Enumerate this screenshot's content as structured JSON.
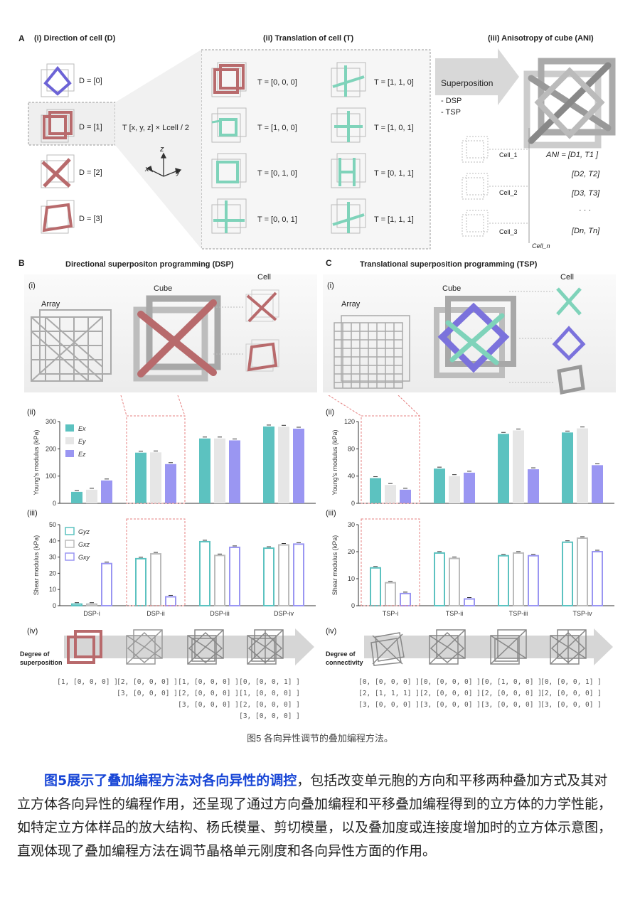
{
  "panelA": {
    "letter": "A",
    "i_title": "(i) Direction of cell (D)",
    "ii_title": "(ii) Translation of cell (T)",
    "iii_title": "(iii) Anisotropy of cube (ANI)",
    "directions": [
      "D = [0]",
      "D = [1]",
      "D = [2]",
      "D = [3]"
    ],
    "formula": "T [x, y, z] × Lcell / 2",
    "axes": {
      "z": "z",
      "x": "x",
      "y": "y"
    },
    "translations_left": [
      "T = [0, 0, 0]",
      "T = [1, 0, 0]",
      "T = [0, 1, 0]",
      "T = [0, 0, 1]"
    ],
    "translations_right": [
      "T = [1, 1, 0]",
      "T = [1, 0, 1]",
      "T = [0, 1, 1]",
      "T = [1, 1, 1]"
    ],
    "superposition": "Superposition",
    "methods": [
      "- DSP",
      "- TSP"
    ],
    "cells": [
      "Cell_1",
      "Cell_2",
      "Cell_3",
      "Cell_n"
    ],
    "ani": [
      "ANI = [D1, T1 ]",
      "[D2, T2]",
      "[D3, T3]",
      "· · ·",
      "[Dn, Tn]"
    ]
  },
  "panelB": {
    "letter": "B",
    "title": "Directional superpositon programming (DSP)",
    "i": "(i)",
    "ii": "(ii)",
    "iii": "(iii)",
    "iv": "(iv)",
    "array": "Array",
    "cube": "Cube",
    "cell": "Cell",
    "degree": "Degree of superposition",
    "codes": [
      [
        "[1, [0, 0, 0] ]"
      ],
      [
        "[2, [0, 0, 0] ]",
        "[3, [0, 0, 0] ]"
      ],
      [
        "[1, [0, 0, 0] ]",
        "[2, [0, 0, 0] ]",
        "[3, [0, 0, 0] ]"
      ],
      [
        "[0, [0, 0, 1] ]",
        "[1, [0, 0, 0] ]",
        "[2, [0, 0, 0] ]",
        "[3, [0, 0, 0] ]"
      ]
    ]
  },
  "panelC": {
    "letter": "C",
    "title": "Translational superposition programming (TSP)",
    "i": "(i)",
    "ii": "(ii)",
    "iii": "(iii)",
    "iv": "(iv)",
    "array": "Array",
    "cube": "Cube",
    "cell": "Cell",
    "degree": "Degree of connectivity",
    "codes": [
      [
        "[0, [0, 0, 0] ]",
        "[2, [1, 1, 1] ]",
        "[3, [0, 0, 0] ]"
      ],
      [
        "[0, [0, 0, 0] ]",
        "[2, [0, 0, 0] ]",
        "[3, [0, 0, 0] ]"
      ],
      [
        "[0, [1, 0, 0] ]",
        "[2, [0, 0, 0] ]",
        "[3, [0, 0, 0] ]"
      ],
      [
        "[0, [0, 0, 1] ]",
        "[2, [0, 0, 0] ]",
        "[3, [0, 0, 0] ]"
      ]
    ]
  },
  "colors": {
    "teal": "#5cc2c0",
    "grey": "#e6e6e6",
    "purple": "#9a96f2",
    "red": "#b86a6c",
    "green": "#7fd3ba"
  },
  "chart_data": [
    {
      "type": "bar",
      "id": "dsp-young",
      "categories": [
        "DSP-i",
        "DSP-ii",
        "DSP-iii",
        "DSP-iv"
      ],
      "series": [
        {
          "name": "Ex",
          "values": [
            42,
            186,
            238,
            282
          ]
        },
        {
          "name": "Ey",
          "values": [
            50,
            187,
            238,
            281
          ]
        },
        {
          "name": "Ez",
          "values": [
            84,
            144,
            231,
            274
          ]
        }
      ],
      "ylabel": "Young's modulus (kPa)",
      "ylim": [
        0,
        300
      ],
      "yticks": [
        0,
        100,
        200,
        300
      ],
      "style": "filled",
      "legend": [
        "Ex",
        "Ey",
        "Ez"
      ]
    },
    {
      "type": "bar",
      "id": "tsp-young",
      "categories": [
        "TSP-i",
        "TSP-ii",
        "TSP-iii",
        "TSP-iv"
      ],
      "series": [
        {
          "name": "Ex",
          "values": [
            37,
            51,
            102,
            104
          ]
        },
        {
          "name": "Ey",
          "values": [
            27,
            40,
            107,
            110
          ]
        },
        {
          "name": "Ez",
          "values": [
            20,
            45,
            50,
            56
          ]
        }
      ],
      "ylabel": "Young's modulus (kPa)",
      "ylim": [
        0,
        120
      ],
      "yticks": [
        0,
        40,
        80,
        120
      ],
      "style": "filled"
    },
    {
      "type": "bar",
      "id": "dsp-shear",
      "categories": [
        "DSP-i",
        "DSP-ii",
        "DSP-iii",
        "DSP-iv"
      ],
      "series": [
        {
          "name": "Gyz",
          "values": [
            1,
            29,
            39.5,
            35.5
          ]
        },
        {
          "name": "Gxz",
          "values": [
            1,
            32,
            31,
            37.5
          ]
        },
        {
          "name": "Gxy",
          "values": [
            26,
            5.5,
            36,
            38
          ]
        }
      ],
      "ylabel": "Shear modulus (kPa)",
      "ylim": [
        0,
        50
      ],
      "yticks": [
        0,
        10,
        20,
        30,
        40,
        50
      ],
      "style": "outline",
      "legend": [
        "Gyz",
        "Gxz",
        "Gxy"
      ]
    },
    {
      "type": "bar",
      "id": "tsp-shear",
      "categories": [
        "TSP-i",
        "TSP-ii",
        "TSP-iii",
        "TSP-iv"
      ],
      "series": [
        {
          "name": "Gyz",
          "values": [
            14,
            19.5,
            18.5,
            23.5
          ]
        },
        {
          "name": "Gxz",
          "values": [
            8.5,
            17.5,
            19.5,
            25
          ]
        },
        {
          "name": "Gxy",
          "values": [
            4.5,
            2.5,
            18.5,
            20
          ]
        }
      ],
      "ylabel": "Shear modulus (kPa)",
      "ylim": [
        0,
        30
      ],
      "yticks": [
        0,
        10,
        20,
        30
      ],
      "style": "outline"
    }
  ],
  "caption": "图5 各向异性调节的叠加编程方法。",
  "paragraph": {
    "highlight": "图5展示了叠加编程方法对各向异性的调控",
    "rest": "，包括改变单元胞的方向和平移两种叠加方式及其对立方体各向异性的编程作用，还呈现了通过方向叠加编程和平移叠加编程得到的立方体的力学性能，如特定立方体样品的放大结构、杨氏模量、剪切模量，以及叠加度或连接度增加时的立方体示意图，直观体现了叠加编程方法在调节晶格单元刚度和各向异性方面的作用。"
  }
}
